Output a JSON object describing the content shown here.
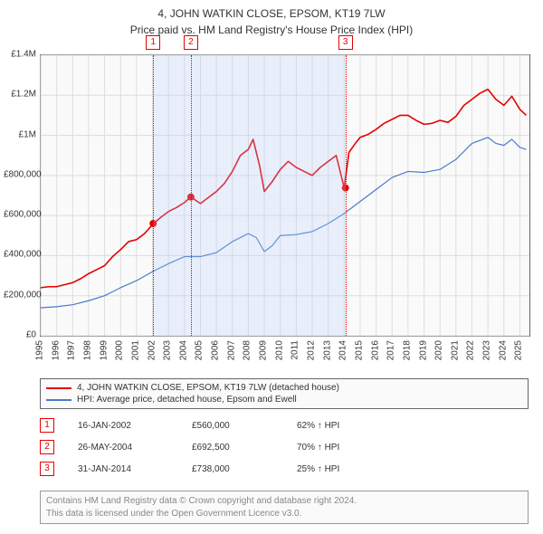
{
  "title": "4, JOHN WATKIN CLOSE, EPSOM, KT19 7LW",
  "subtitle": "Price paid vs. HM Land Registry's House Price Index (HPI)",
  "chart": {
    "type": "line",
    "background_color": "#fafafa",
    "border_color": "#666666",
    "grid_color": "#dddddd",
    "x_years": [
      1995,
      1996,
      1997,
      1998,
      1999,
      2000,
      2001,
      2002,
      2003,
      2004,
      2005,
      2006,
      2007,
      2008,
      2009,
      2010,
      2011,
      2012,
      2013,
      2014,
      2015,
      2016,
      2017,
      2018,
      2019,
      2020,
      2021,
      2022,
      2023,
      2024,
      2025
    ],
    "x_min_year": 1995,
    "x_max_year": 2025.6,
    "y_min": 0,
    "y_max": 1400000,
    "y_ticks": [
      0,
      200000,
      400000,
      600000,
      800000,
      1000000,
      1200000,
      1400000
    ],
    "y_tick_labels": [
      "£0",
      "£200,000",
      "£400,000",
      "£600,000",
      "£800,000",
      "£1M",
      "£1.2M",
      "£1.4M"
    ],
    "series": [
      {
        "name": "subject",
        "label": "4, JOHN WATKIN CLOSE, EPSOM, KT19 7LW (detached house)",
        "color": "#e60000",
        "line_width": 1.6,
        "points": [
          [
            1995,
            240000
          ],
          [
            1995.5,
            245000
          ],
          [
            1996,
            245000
          ],
          [
            1996.5,
            255000
          ],
          [
            1997,
            265000
          ],
          [
            1997.5,
            285000
          ],
          [
            1998,
            310000
          ],
          [
            1998.5,
            330000
          ],
          [
            1999,
            350000
          ],
          [
            1999.5,
            395000
          ],
          [
            2000,
            430000
          ],
          [
            2000.5,
            470000
          ],
          [
            2001,
            480000
          ],
          [
            2001.5,
            510000
          ],
          [
            2002,
            555000
          ],
          [
            2002.5,
            590000
          ],
          [
            2003,
            620000
          ],
          [
            2003.5,
            640000
          ],
          [
            2004,
            665000
          ],
          [
            2004.4,
            692500
          ],
          [
            2005,
            660000
          ],
          [
            2005.5,
            690000
          ],
          [
            2006,
            720000
          ],
          [
            2006.5,
            760000
          ],
          [
            2007,
            820000
          ],
          [
            2007.5,
            900000
          ],
          [
            2008,
            930000
          ],
          [
            2008.3,
            980000
          ],
          [
            2008.7,
            850000
          ],
          [
            2009,
            720000
          ],
          [
            2009.5,
            770000
          ],
          [
            2010,
            830000
          ],
          [
            2010.5,
            870000
          ],
          [
            2011,
            840000
          ],
          [
            2011.5,
            820000
          ],
          [
            2012,
            800000
          ],
          [
            2012.5,
            840000
          ],
          [
            2013,
            870000
          ],
          [
            2013.5,
            900000
          ],
          [
            2014,
            738000
          ],
          [
            2014.3,
            915000
          ],
          [
            2014.7,
            960000
          ],
          [
            2015,
            990000
          ],
          [
            2015.5,
            1005000
          ],
          [
            2016,
            1030000
          ],
          [
            2016.5,
            1060000
          ],
          [
            2017,
            1080000
          ],
          [
            2017.5,
            1100000
          ],
          [
            2018,
            1100000
          ],
          [
            2018.5,
            1075000
          ],
          [
            2019,
            1055000
          ],
          [
            2019.5,
            1060000
          ],
          [
            2020,
            1075000
          ],
          [
            2020.5,
            1065000
          ],
          [
            2021,
            1095000
          ],
          [
            2021.5,
            1150000
          ],
          [
            2022,
            1180000
          ],
          [
            2022.5,
            1210000
          ],
          [
            2023,
            1230000
          ],
          [
            2023.5,
            1180000
          ],
          [
            2024,
            1150000
          ],
          [
            2024.5,
            1195000
          ],
          [
            2025,
            1130000
          ],
          [
            2025.4,
            1100000
          ]
        ]
      },
      {
        "name": "hpi",
        "label": "HPI: Average price, detached house, Epsom and Ewell",
        "color": "#4a7bc8",
        "line_width": 1.2,
        "points": [
          [
            1995,
            140000
          ],
          [
            1996,
            145000
          ],
          [
            1997,
            155000
          ],
          [
            1998,
            175000
          ],
          [
            1999,
            200000
          ],
          [
            2000,
            240000
          ],
          [
            2001,
            275000
          ],
          [
            2002,
            320000
          ],
          [
            2003,
            360000
          ],
          [
            2004,
            395000
          ],
          [
            2005,
            395000
          ],
          [
            2006,
            415000
          ],
          [
            2007,
            470000
          ],
          [
            2008,
            510000
          ],
          [
            2008.5,
            490000
          ],
          [
            2009,
            420000
          ],
          [
            2009.5,
            450000
          ],
          [
            2010,
            500000
          ],
          [
            2011,
            505000
          ],
          [
            2012,
            520000
          ],
          [
            2013,
            560000
          ],
          [
            2014,
            610000
          ],
          [
            2015,
            670000
          ],
          [
            2016,
            730000
          ],
          [
            2017,
            790000
          ],
          [
            2018,
            820000
          ],
          [
            2019,
            815000
          ],
          [
            2020,
            830000
          ],
          [
            2021,
            880000
          ],
          [
            2022,
            960000
          ],
          [
            2023,
            990000
          ],
          [
            2023.5,
            960000
          ],
          [
            2024,
            950000
          ],
          [
            2024.5,
            980000
          ],
          [
            2025,
            940000
          ],
          [
            2025.4,
            930000
          ]
        ]
      }
    ],
    "trade_markers": [
      {
        "idx": "1",
        "year": 2002.04,
        "price": 560000,
        "shade_color": "#b3d1ff",
        "line_color": "#e60000"
      },
      {
        "idx": "2",
        "year": 2004.4,
        "price": 692500,
        "shade_color": "#b3d1ff",
        "line_color": "#e60000"
      },
      {
        "idx": "3",
        "year": 2014.08,
        "price": 738000,
        "shade_color": "#b3d1ff",
        "line_color": "#e60000"
      }
    ],
    "marker_box_border": "#e60000",
    "marker_dot_color": "#e60000"
  },
  "legend": {
    "items": [
      {
        "color": "#e60000",
        "label": "4, JOHN WATKIN CLOSE, EPSOM, KT19 7LW (detached house)"
      },
      {
        "color": "#4a7bc8",
        "label": "HPI: Average price, detached house, Epsom and Ewell"
      }
    ]
  },
  "trades_table": {
    "rows": [
      {
        "idx": "1",
        "date": "16-JAN-2002",
        "price": "£560,000",
        "pct": "62% ↑ HPI"
      },
      {
        "idx": "2",
        "date": "26-MAY-2004",
        "price": "£692,500",
        "pct": "70% ↑ HPI"
      },
      {
        "idx": "3",
        "date": "31-JAN-2014",
        "price": "£738,000",
        "pct": "25% ↑ HPI"
      }
    ],
    "marker_border": "#e60000"
  },
  "footer": {
    "line1": "Contains HM Land Registry data © Crown copyright and database right 2024.",
    "line2": "This data is licensed under the Open Government Licence v3.0."
  }
}
